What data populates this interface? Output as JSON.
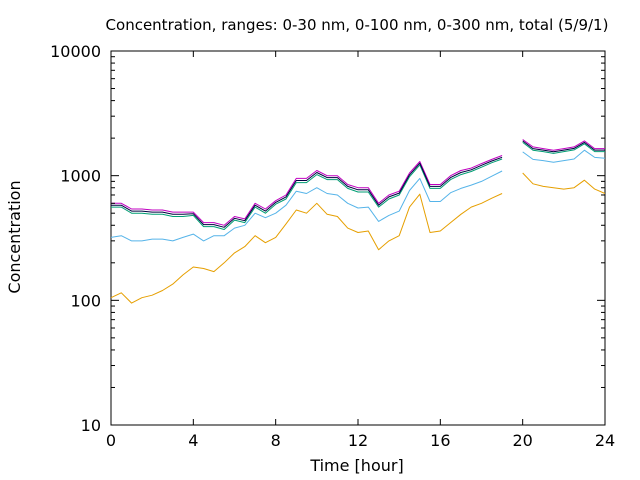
{
  "chart_data": {
    "type": "line",
    "title": "Concentration, ranges: 0-30 nm, 0-100 nm, 0-300 nm, total (5/9/1)",
    "xlabel": "Time [hour]",
    "ylabel": "Concentration",
    "xlim": [
      0,
      24
    ],
    "ylim": [
      10,
      10000
    ],
    "yscale": "log",
    "x_ticks": [
      "0",
      "4",
      "8",
      "12",
      "16",
      "20",
      "24"
    ],
    "y_ticks": [
      "10",
      "100",
      "1000",
      "10000"
    ],
    "grid": false,
    "legend": "none",
    "x": [
      0,
      0.5,
      1,
      1.5,
      2,
      2.5,
      3,
      3.5,
      4,
      4.5,
      5,
      5.5,
      6,
      6.5,
      7,
      7.5,
      8,
      8.5,
      9,
      9.5,
      10,
      10.5,
      11,
      11.5,
      12,
      12.5,
      13,
      13.5,
      14,
      14.5,
      15,
      15.5,
      16,
      16.5,
      17,
      17.5,
      18,
      18.5,
      19,
      19.5,
      20,
      20.5,
      21,
      21.5,
      22,
      22.5,
      23,
      23.5,
      24
    ],
    "series": [
      {
        "color": "#c000c0",
        "values": [
          600,
          600,
          540,
          540,
          530,
          530,
          510,
          510,
          510,
          420,
          420,
          400,
          470,
          450,
          600,
          540,
          630,
          700,
          950,
          950,
          1100,
          1000,
          1000,
          850,
          800,
          800,
          600,
          700,
          750,
          1050,
          1300,
          850,
          850,
          1000,
          1100,
          1150,
          1250,
          1350,
          1450,
          null,
          1950,
          1700,
          1650,
          1600,
          1650,
          1700,
          1900,
          1650,
          1650
        ]
      },
      {
        "color": "#009e73",
        "values": [
          560,
          560,
          500,
          500,
          490,
          490,
          470,
          470,
          480,
          390,
          390,
          370,
          440,
          420,
          560,
          500,
          590,
          650,
          880,
          880,
          1020,
          930,
          930,
          790,
          740,
          740,
          560,
          650,
          700,
          980,
          1220,
          790,
          790,
          930,
          1020,
          1080,
          1170,
          1270,
          1360,
          null,
          1850,
          1600,
          1560,
          1510,
          1560,
          1610,
          1800,
          1560,
          1560
        ]
      },
      {
        "color": "#000040",
        "values": [
          580,
          580,
          520,
          520,
          510,
          510,
          490,
          490,
          495,
          405,
          405,
          385,
          455,
          435,
          580,
          520,
          610,
          675,
          915,
          915,
          1060,
          965,
          965,
          820,
          770,
          770,
          580,
          675,
          725,
          1015,
          1260,
          820,
          820,
          965,
          1060,
          1115,
          1210,
          1310,
          1405,
          null,
          1900,
          1650,
          1605,
          1555,
          1605,
          1655,
          1850,
          1605,
          1605
        ]
      },
      {
        "color": "#56b4e9",
        "values": [
          320,
          330,
          300,
          300,
          310,
          310,
          300,
          320,
          340,
          300,
          330,
          330,
          380,
          400,
          500,
          460,
          500,
          580,
          750,
          720,
          800,
          720,
          700,
          600,
          550,
          560,
          430,
          480,
          520,
          760,
          950,
          620,
          620,
          730,
          790,
          840,
          900,
          990,
          1090,
          null,
          1550,
          1350,
          1320,
          1280,
          1320,
          1360,
          1600,
          1400,
          1380
        ]
      },
      {
        "color": "#e69f00",
        "values": [
          105,
          115,
          95,
          105,
          110,
          120,
          135,
          160,
          185,
          180,
          170,
          200,
          240,
          270,
          330,
          290,
          320,
          410,
          530,
          500,
          600,
          490,
          470,
          380,
          350,
          360,
          255,
          300,
          330,
          560,
          710,
          350,
          360,
          420,
          490,
          560,
          600,
          660,
          720,
          null,
          1050,
          860,
          820,
          800,
          780,
          800,
          920,
          780,
          720
        ]
      }
    ]
  }
}
